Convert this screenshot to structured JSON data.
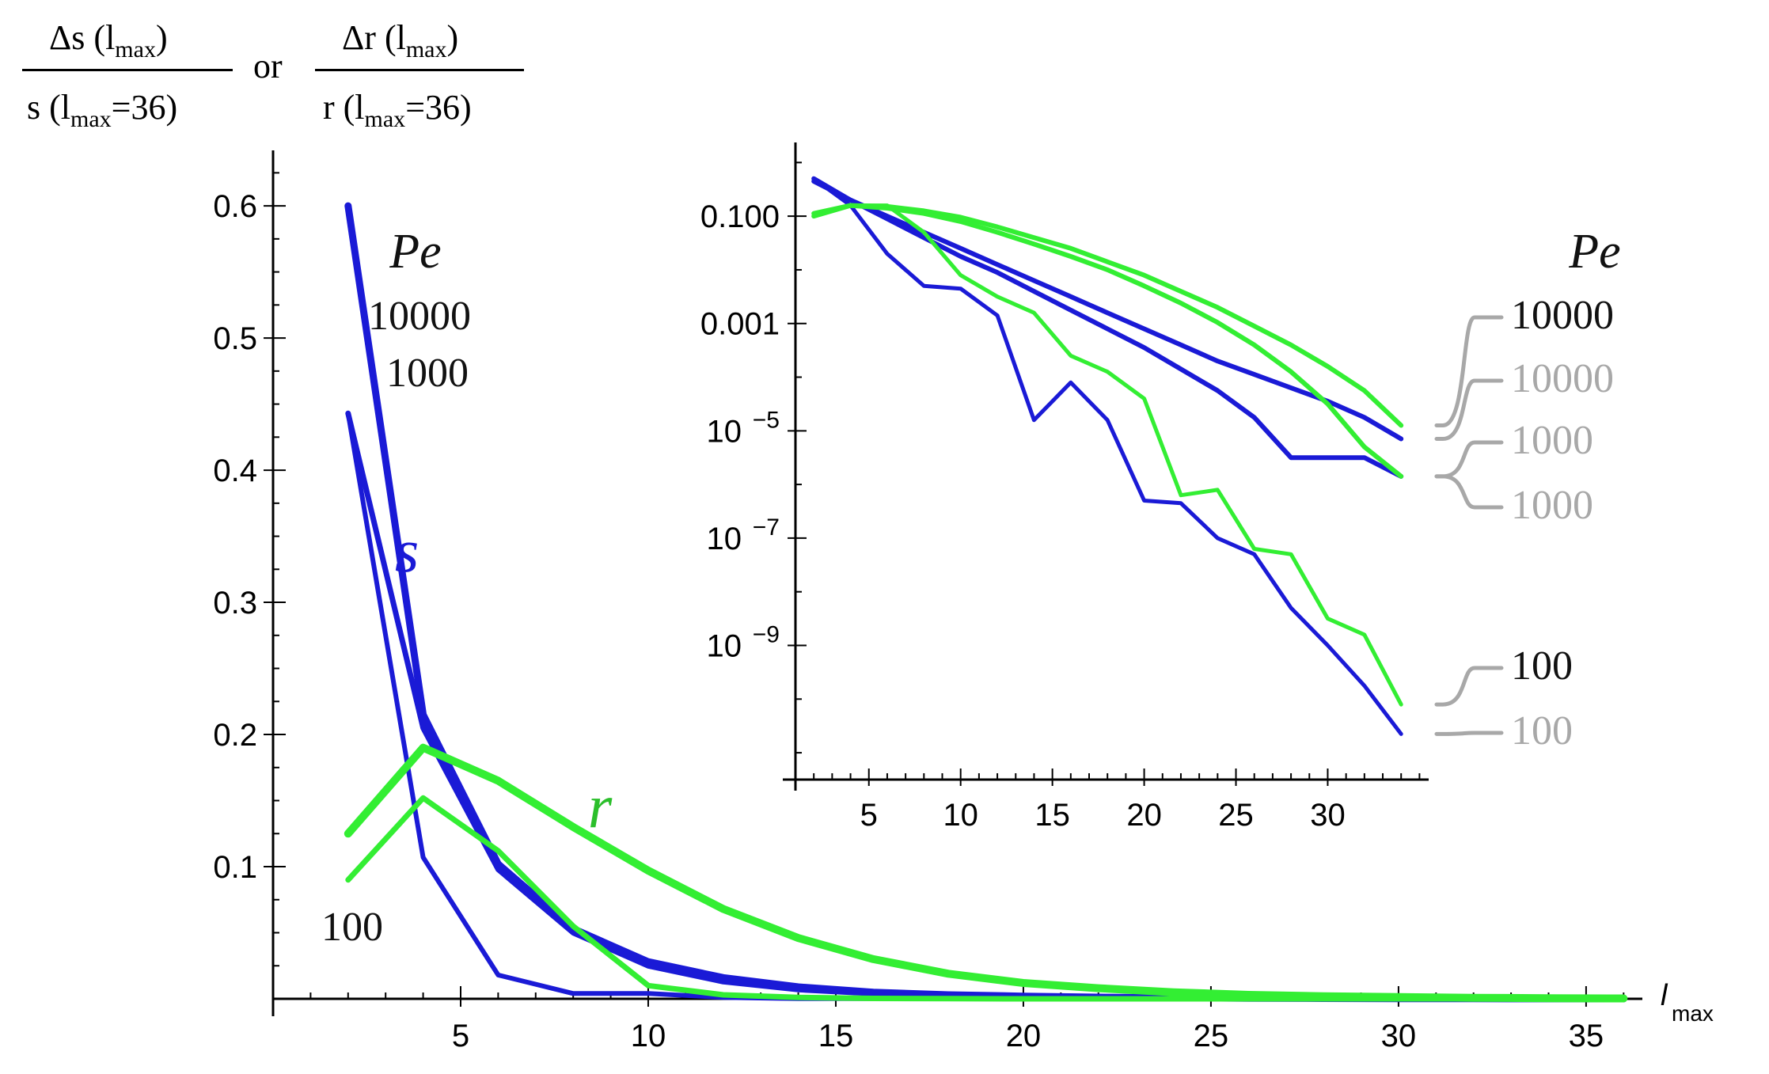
{
  "header": {
    "ylabel_num_s": "Δs (l",
    "ylabel_den_s": "s (l",
    "ylabel_num_r": "Δr (l",
    "ylabel_den_r": "r (l",
    "sub_max": "max",
    "den_suffix": "=36)",
    "num_suffix": ")",
    "or": "or"
  },
  "colors": {
    "s": "#1a1ad6",
    "r": "#33ee33",
    "label_dark": "#111111",
    "label_gray": "#a8a8a8",
    "r_label": "#2bbf2b",
    "connector": "#a8a8a8"
  },
  "chart_data": [
    {
      "id": "main",
      "type": "line",
      "xlabel": "l",
      "xlabel_sub": "max",
      "xlim": [
        0,
        36.5
      ],
      "ylim": [
        0,
        0.63
      ],
      "xticks": [
        5,
        10,
        15,
        20,
        25,
        30,
        35
      ],
      "yticks": [
        0.1,
        0.2,
        0.3,
        0.4,
        0.5,
        0.6
      ],
      "ytick_labels": [
        "0.1",
        "0.2",
        "0.3",
        "0.4",
        "0.5",
        "0.6"
      ],
      "annotations": {
        "pe_title": "Pe",
        "pe_10000": "10000",
        "pe_1000": "1000",
        "pe_100": "100",
        "s_label": "s",
        "r_label": "r"
      },
      "series": [
        {
          "name": "s Pe=10000",
          "color": "s",
          "width": 9,
          "x": [
            2,
            4,
            6,
            8,
            10,
            12,
            14,
            16,
            18,
            20,
            22,
            24,
            26,
            28,
            30,
            32,
            34,
            36
          ],
          "values": [
            0.6,
            0.215,
            0.102,
            0.053,
            0.028,
            0.016,
            0.009,
            0.005,
            0.003,
            0.002,
            0.0012,
            0.0008,
            0.0005,
            0.0003,
            0.0002,
            0.0001,
            6e-05,
            4e-05
          ]
        },
        {
          "name": "s Pe=1000",
          "color": "s",
          "width": 7,
          "x": [
            2,
            4,
            6,
            8,
            10,
            12,
            14,
            16,
            18,
            20,
            22,
            24,
            26,
            28,
            30,
            32,
            34,
            36
          ],
          "values": [
            0.443,
            0.205,
            0.098,
            0.05,
            0.025,
            0.013,
            0.007,
            0.004,
            0.002,
            0.001,
            0.0006,
            0.0003,
            0.0002,
            0.0001,
            6e-05,
            3e-05,
            2e-05,
            1e-05
          ]
        },
        {
          "name": "s Pe=100",
          "color": "s",
          "width": 6,
          "x": [
            2,
            4,
            6,
            8,
            10,
            12,
            14,
            16,
            18,
            20,
            22,
            24,
            26,
            28,
            30,
            32,
            34,
            36
          ],
          "values": [
            0.443,
            0.107,
            0.018,
            0.004,
            0.004,
            0.001,
            0.0001,
            0.0001,
            0,
            0,
            0,
            0,
            0,
            0,
            0,
            0,
            0,
            0
          ]
        },
        {
          "name": "r Pe=10000",
          "color": "r",
          "width": 10,
          "x": [
            2,
            4,
            6,
            8,
            10,
            12,
            14,
            16,
            18,
            20,
            22,
            24,
            26,
            28,
            30,
            32,
            34,
            36
          ],
          "values": [
            0.125,
            0.19,
            0.165,
            0.13,
            0.097,
            0.068,
            0.046,
            0.03,
            0.019,
            0.012,
            0.008,
            0.005,
            0.003,
            0.002,
            0.0013,
            0.0008,
            0.0005,
            0.0003
          ]
        },
        {
          "name": "r Pe=100",
          "color": "r",
          "width": 7,
          "x": [
            2,
            4,
            6,
            8,
            10,
            12,
            14,
            16,
            18,
            20,
            22,
            24,
            26,
            28,
            30,
            32,
            34,
            36
          ],
          "values": [
            0.09,
            0.152,
            0.112,
            0.055,
            0.01,
            0.003,
            0.001,
            0.0003,
            0.0001,
            0,
            0,
            0,
            0,
            0,
            0,
            0,
            0,
            0
          ]
        }
      ]
    },
    {
      "id": "inset",
      "type": "line",
      "yscale": "log",
      "xlim": [
        1,
        35.5
      ],
      "ylim_log10": [
        -11.5,
        0.3
      ],
      "xticks": [
        5,
        10,
        15,
        20,
        25,
        30
      ],
      "yticks_log10": [
        -1,
        -3,
        -5,
        -7,
        -9
      ],
      "ytick_labels": [
        {
          "mant": "0.100",
          "exp": ""
        },
        {
          "mant": "0.001",
          "exp": ""
        },
        {
          "mant": "10",
          "exp": "−5"
        },
        {
          "mant": "10",
          "exp": "−7"
        },
        {
          "mant": "10",
          "exp": "−9"
        }
      ],
      "pe_title": "Pe",
      "end_labels": [
        {
          "text": "10000",
          "tone": "dark",
          "series": "r Pe=10000"
        },
        {
          "text": "10000",
          "tone": "gray",
          "series": "s Pe=10000"
        },
        {
          "text": "1000",
          "tone": "gray",
          "series": "r Pe=1000"
        },
        {
          "text": "1000",
          "tone": "gray",
          "series": "s Pe=1000"
        },
        {
          "text": "100",
          "tone": "dark",
          "series": "r Pe=100"
        },
        {
          "text": "100",
          "tone": "gray",
          "series": "s Pe=100"
        }
      ],
      "series": [
        {
          "name": "s Pe=10000",
          "color": "s",
          "width": 6,
          "x": [
            2,
            4,
            6,
            8,
            10,
            12,
            14,
            16,
            18,
            20,
            22,
            24,
            26,
            28,
            30,
            32,
            34
          ],
          "values_log10": [
            -0.35,
            -0.7,
            -1.0,
            -1.3,
            -1.6,
            -1.9,
            -2.2,
            -2.5,
            -2.8,
            -3.1,
            -3.4,
            -3.7,
            -3.95,
            -4.2,
            -4.45,
            -4.75,
            -5.15
          ]
        },
        {
          "name": "s Pe=1000",
          "color": "s",
          "width": 6,
          "x": [
            2,
            4,
            6,
            8,
            10,
            12,
            14,
            16,
            18,
            20,
            22,
            24,
            26,
            28,
            30,
            32,
            34
          ],
          "values_log10": [
            -0.3,
            -0.7,
            -1.05,
            -1.4,
            -1.75,
            -2.05,
            -2.4,
            -2.75,
            -3.1,
            -3.45,
            -3.85,
            -4.25,
            -4.75,
            -5.5,
            -5.5,
            -5.5,
            -5.85
          ]
        },
        {
          "name": "s Pe=100",
          "color": "s",
          "width": 5,
          "x": [
            2,
            4,
            6,
            8,
            10,
            12,
            14,
            16,
            18,
            20,
            22,
            24,
            26,
            28,
            30,
            32,
            34
          ],
          "values_log10": [
            -0.3,
            -0.8,
            -1.7,
            -2.3,
            -2.35,
            -2.85,
            -4.8,
            -4.1,
            -4.8,
            -6.3,
            -6.35,
            -7.0,
            -7.3,
            -8.3,
            -9.0,
            -9.75,
            -10.65
          ]
        },
        {
          "name": "r Pe=10000",
          "color": "r",
          "width": 6,
          "x": [
            2,
            4,
            6,
            8,
            10,
            12,
            14,
            16,
            18,
            20,
            22,
            24,
            26,
            28,
            30,
            32,
            34
          ],
          "values_log10": [
            -1.0,
            -0.8,
            -0.82,
            -0.9,
            -1.02,
            -1.2,
            -1.4,
            -1.6,
            -1.85,
            -2.1,
            -2.4,
            -2.7,
            -3.05,
            -3.4,
            -3.8,
            -4.25,
            -4.9
          ]
        },
        {
          "name": "r Pe=1000",
          "color": "r",
          "width": 6,
          "x": [
            2,
            4,
            6,
            8,
            10,
            12,
            14,
            16,
            18,
            20,
            22,
            24,
            26,
            28,
            30,
            32,
            34
          ],
          "values_log10": [
            -0.95,
            -0.8,
            -0.85,
            -0.95,
            -1.1,
            -1.3,
            -1.52,
            -1.75,
            -2.0,
            -2.3,
            -2.62,
            -2.98,
            -3.4,
            -3.9,
            -4.5,
            -5.3,
            -5.85
          ]
        },
        {
          "name": "r Pe=100",
          "color": "r",
          "width": 5,
          "x": [
            2,
            4,
            6,
            8,
            10,
            12,
            14,
            16,
            18,
            20,
            22,
            24,
            26,
            28,
            30,
            32,
            34
          ],
          "values_log10": [
            -1.0,
            -0.8,
            -0.8,
            -1.3,
            -2.1,
            -2.5,
            -2.8,
            -3.6,
            -3.9,
            -4.4,
            -6.2,
            -6.1,
            -7.2,
            -7.3,
            -8.5,
            -8.8,
            -10.1
          ]
        }
      ]
    }
  ]
}
